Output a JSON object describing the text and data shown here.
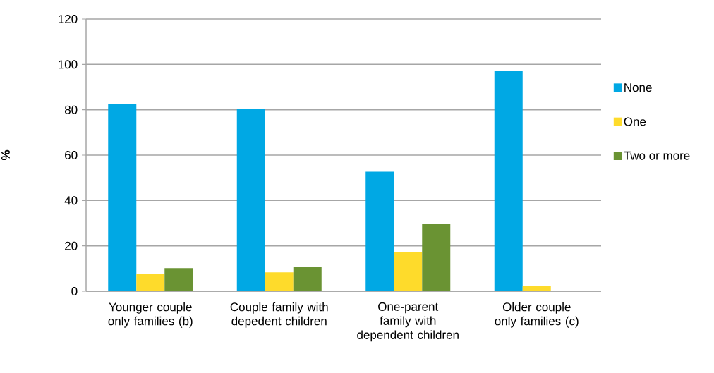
{
  "chart_data": {
    "type": "bar",
    "ylabel": "%",
    "categories": [
      "Younger couple only families (b)",
      "Couple family with depedent children",
      "One-parent family with dependent children",
      "Older couple only families (c)"
    ],
    "series": [
      {
        "name": "None",
        "color": "#00a8e4",
        "values": [
          82.6,
          80.4,
          52.7,
          97.2
        ]
      },
      {
        "name": "One",
        "color": "#fedb2b",
        "values": [
          7.7,
          8.3,
          17.3,
          2.4
        ]
      },
      {
        "name": "Two or more",
        "color": "#6a9333",
        "values": [
          10.2,
          10.8,
          29.7,
          null
        ]
      }
    ],
    "ylim": [
      0,
      120
    ],
    "yticks": [
      0,
      20,
      40,
      60,
      80,
      100,
      120
    ],
    "grid": "y",
    "legend": "right"
  }
}
